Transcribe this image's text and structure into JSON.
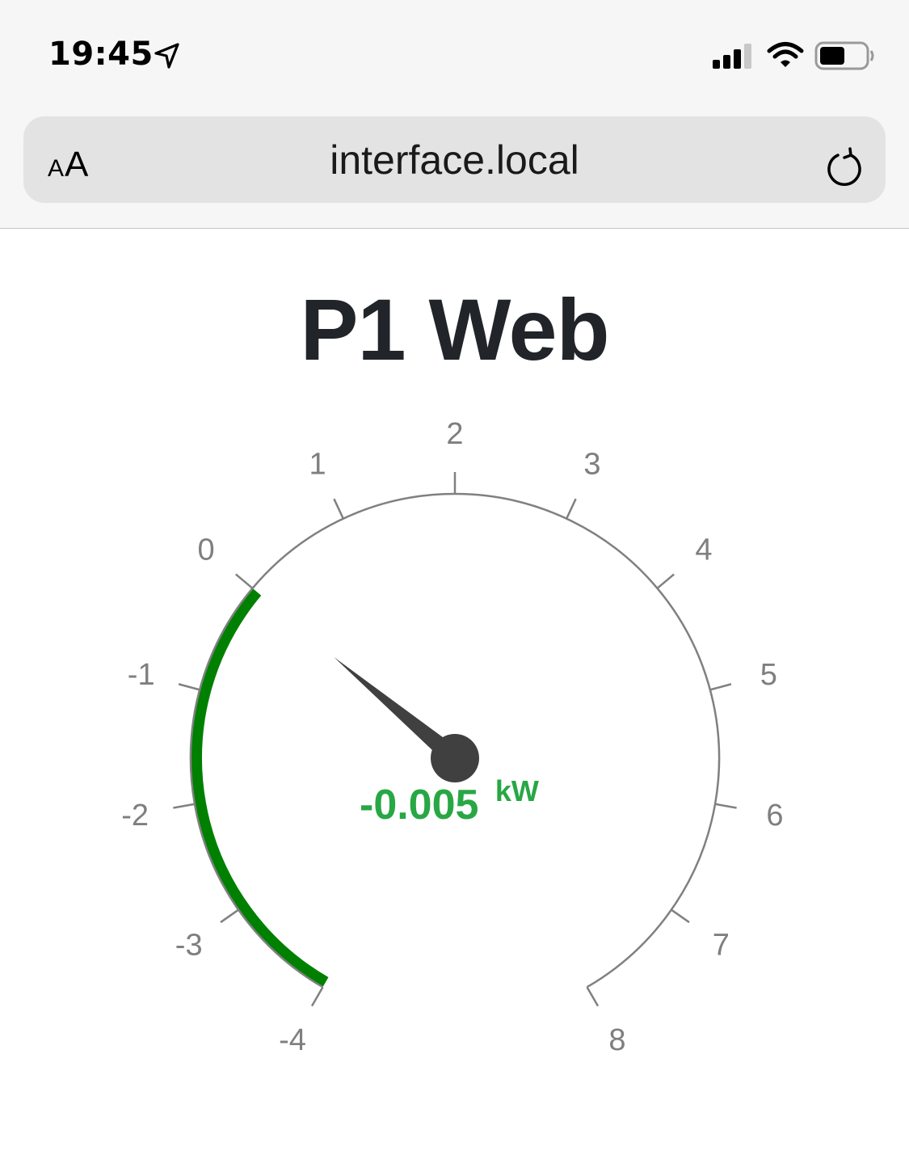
{
  "status_bar": {
    "time": "19:45",
    "icons": [
      "location-arrow-icon",
      "cellular-signal-icon",
      "wifi-icon",
      "battery-icon"
    ]
  },
  "browser": {
    "text_size_label_small": "A",
    "text_size_label_large": "A",
    "url": "interface.local",
    "reload_icon": "reload-icon"
  },
  "page": {
    "title": "P1 Web"
  },
  "gauge": {
    "min": -4,
    "max": 8,
    "tick_labels": [
      "-4",
      "-3",
      "-2",
      "-1",
      "0",
      "1",
      "2",
      "3",
      "4",
      "5",
      "6",
      "7",
      "8"
    ],
    "value": -0.005,
    "value_label": "-0.005",
    "unit": "kW",
    "band": {
      "from": -4,
      "to": 0,
      "color": "#008000"
    },
    "value_color": "#28a745",
    "needle_color": "#404040",
    "axis_color": "#808080"
  }
}
